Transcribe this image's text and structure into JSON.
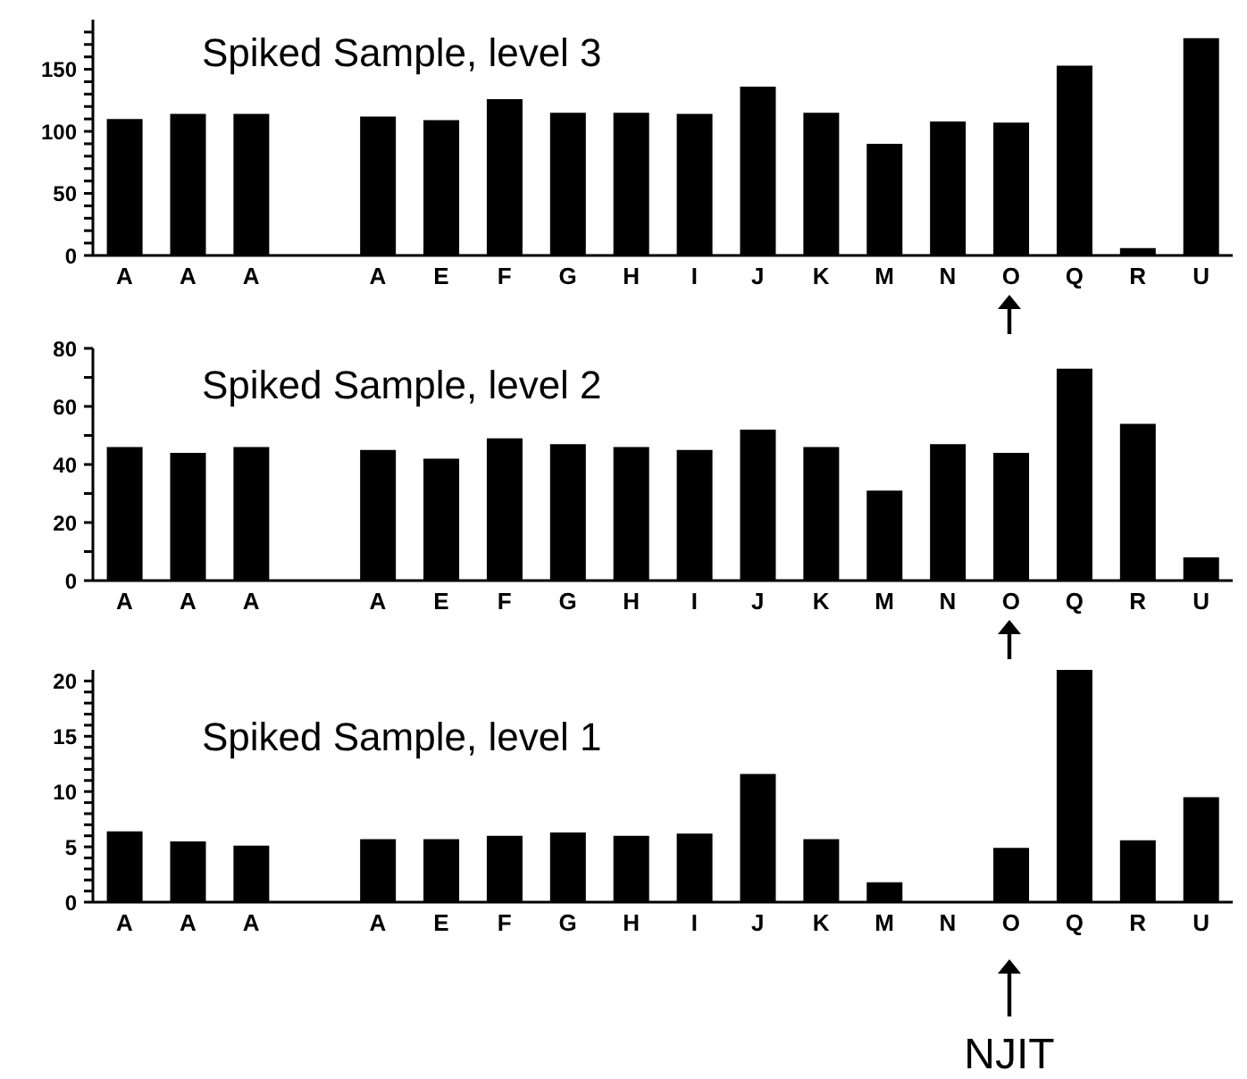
{
  "chart_data": [
    {
      "type": "bar",
      "title": "Spiked Sample, level 3",
      "categories": [
        "A",
        "A",
        "A",
        null,
        "A",
        "E",
        "F",
        "G",
        "H",
        "I",
        "J",
        "K",
        "M",
        "N",
        "O",
        "Q",
        "R",
        "U"
      ],
      "values": [
        110,
        114,
        114,
        null,
        112,
        109,
        126,
        115,
        115,
        114,
        136,
        115,
        90,
        108,
        107,
        153,
        6,
        175
      ],
      "color": "#000000",
      "ylim": [
        0,
        190
      ],
      "yticks": [
        0,
        {
          "value": 10,
          "label": null
        },
        {
          "value": 20,
          "label": null
        },
        {
          "value": 30,
          "label": null
        },
        {
          "value": 40,
          "label": null
        },
        50,
        {
          "value": 60,
          "label": null
        },
        {
          "value": 70,
          "label": null
        },
        {
          "value": 80,
          "label": null
        },
        {
          "value": 90,
          "label": null
        },
        100,
        {
          "value": 110,
          "label": null
        },
        {
          "value": 120,
          "label": null
        },
        {
          "value": 130,
          "label": null
        },
        {
          "value": 140,
          "label": null
        },
        150,
        {
          "value": 160,
          "label": null
        },
        {
          "value": 170,
          "label": null
        },
        {
          "value": 180,
          "label": null
        }
      ]
    },
    {
      "type": "bar",
      "title": "Spiked Sample, level 2",
      "categories": [
        "A",
        "A",
        "A",
        null,
        "A",
        "E",
        "F",
        "G",
        "H",
        "I",
        "J",
        "K",
        "M",
        "N",
        "O",
        "Q",
        "R",
        "U"
      ],
      "values": [
        46,
        44,
        46,
        null,
        45,
        42,
        49,
        47,
        46,
        45,
        52,
        46,
        31,
        47,
        44,
        73,
        54,
        8
      ],
      "color": "#000000",
      "ylim": [
        0,
        80
      ],
      "yticks": [
        0,
        {
          "value": 10,
          "label": null
        },
        20,
        {
          "value": 30,
          "label": null
        },
        40,
        {
          "value": 50,
          "label": null
        },
        60,
        {
          "value": 70,
          "label": null
        },
        80
      ]
    },
    {
      "type": "bar",
      "title": "Spiked Sample, level 1",
      "categories": [
        "A",
        "A",
        "A",
        null,
        "A",
        "E",
        "F",
        "G",
        "H",
        "I",
        "J",
        "K",
        "M",
        "N",
        "O",
        "Q",
        "R",
        "U"
      ],
      "values": [
        6.4,
        5.5,
        5.1,
        null,
        5.7,
        5.7,
        6.0,
        6.3,
        6.0,
        6.2,
        11.6,
        5.7,
        1.8,
        null,
        4.9,
        21,
        5.6,
        9.5
      ],
      "color": "#000000",
      "ylim": [
        0,
        21
      ],
      "yticks": [
        0,
        {
          "value": 1,
          "label": null
        },
        {
          "value": 2,
          "label": null
        },
        {
          "value": 3,
          "label": null
        },
        {
          "value": 4,
          "label": null
        },
        5,
        {
          "value": 6,
          "label": null
        },
        {
          "value": 7,
          "label": null
        },
        {
          "value": 8,
          "label": null
        },
        {
          "value": 9,
          "label": null
        },
        10,
        {
          "value": 11,
          "label": null
        },
        {
          "value": 12,
          "label": null
        },
        {
          "value": 13,
          "label": null
        },
        {
          "value": 14,
          "label": null
        },
        15,
        {
          "value": 16,
          "label": null
        },
        {
          "value": 17,
          "label": null
        },
        {
          "value": 18,
          "label": null
        },
        {
          "value": 19,
          "label": null
        },
        20
      ],
      "annotations": [
        "NJIT"
      ]
    }
  ]
}
